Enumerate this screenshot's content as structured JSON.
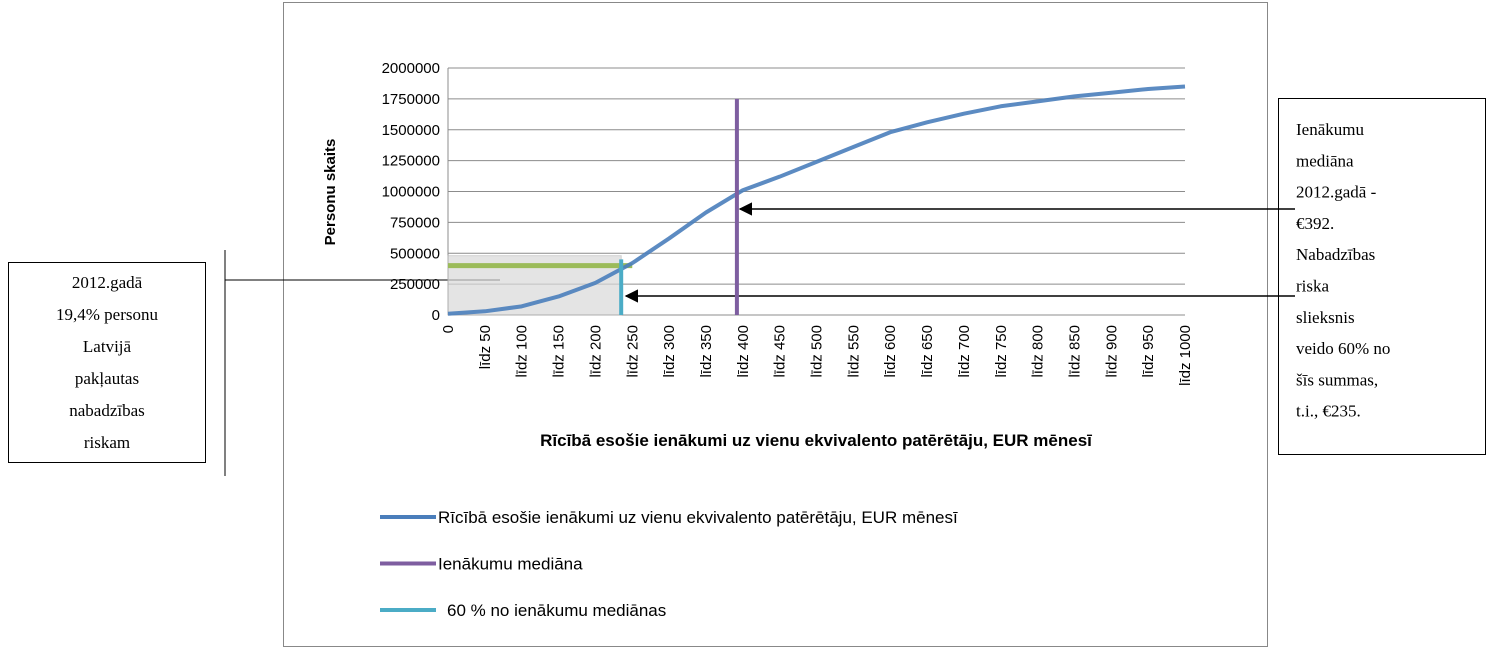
{
  "chart_data": {
    "type": "line",
    "x_label": "Rīcībā esošie ienākumi uz vienu ekvivalento patērētāju, EUR mēnesī",
    "y_label": "Personu skaits",
    "categories": [
      "0",
      "līdz 50",
      "līdz 100",
      "līdz 150",
      "līdz 200",
      "līdz 250",
      "līdz 300",
      "līdz 350",
      "līdz 400",
      "līdz 450",
      "līdz 500",
      "līdz 550",
      "līdz 600",
      "līdz 650",
      "līdz 700",
      "līdz 750",
      "līdz 800",
      "līdz 850",
      "līdz 900",
      "līdz 950",
      "līdz 1000"
    ],
    "xlim": [
      0,
      1000
    ],
    "series": [
      {
        "name": "Rīcībā esošie ienākumi uz vienu ekvivalento patērētāju, EUR mēnesī",
        "color": "#4a7ebb",
        "values": [
          10000,
          30000,
          70000,
          150000,
          260000,
          420000,
          620000,
          830000,
          1010000,
          1120000,
          1240000,
          1360000,
          1480000,
          1560000,
          1630000,
          1690000,
          1730000,
          1770000,
          1800000,
          1830000,
          1850000
        ]
      }
    ],
    "reference_lines": [
      {
        "name": "Ienākumu mediāna",
        "color": "#7e5ea0",
        "x": 392,
        "y_top": 1750000
      },
      {
        "name": "60 % no ienākumu mediānas",
        "color": "#4bacc6",
        "x": 235,
        "y_top": 450000
      }
    ],
    "highlight": {
      "color": "#d9d9d9",
      "x_end": 235,
      "y_top": 480000
    },
    "level_line": {
      "color": "#9bbb59",
      "y": 400000,
      "x_end": 250
    },
    "ylim": [
      0,
      2000000
    ],
    "yticks": [
      0,
      250000,
      500000,
      750000,
      1000000,
      1250000,
      1500000,
      1750000,
      2000000
    ],
    "grid": true,
    "annotations": [
      {
        "lines": [
          "2012.gadā",
          "19,4% personu",
          "Latvijā",
          "pakļautas",
          "nabadzības",
          "riskam"
        ]
      },
      {
        "lines": [
          "Ienākumu",
          "mediāna",
          "2012.gadā -",
          "€392.",
          "Nabadzības",
          "riska",
          "slieksnis",
          "veido 60% no",
          "šīs summas,",
          "t.i., €235."
        ]
      }
    ]
  }
}
